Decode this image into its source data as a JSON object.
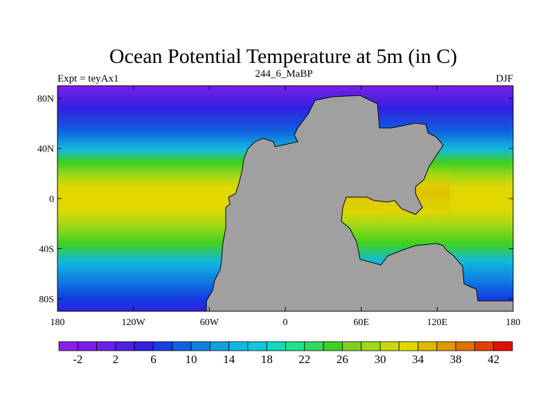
{
  "chart_data": {
    "type": "heatmap",
    "title": "Ocean Potential Temperature at 5m (in C)",
    "left_label": "Expt = teyAx1",
    "center_label": "244_6_MaBP",
    "right_label": "DJF",
    "x_ticks": [
      "180",
      "120W",
      "60W",
      "0",
      "60E",
      "120E",
      "180"
    ],
    "x_tick_values": [
      -180,
      -120,
      -60,
      0,
      60,
      120,
      180
    ],
    "y_ticks": [
      "80N",
      "40N",
      "0",
      "40S",
      "80S"
    ],
    "y_tick_values": [
      80,
      40,
      0,
      -40,
      -80
    ],
    "xlim": [
      -180,
      180
    ],
    "ylim": [
      -90,
      90
    ],
    "units": "C",
    "colorbar": {
      "levels": [
        -4,
        -2,
        0,
        2,
        4,
        6,
        8,
        10,
        12,
        14,
        16,
        18,
        20,
        22,
        24,
        26,
        28,
        30,
        32,
        34,
        36,
        38,
        40,
        42,
        44
      ],
      "labels": [
        "-2",
        "2",
        "6",
        "10",
        "14",
        "18",
        "22",
        "26",
        "30",
        "34",
        "38",
        "42"
      ],
      "colors": [
        "#8a20e8",
        "#7a20e8",
        "#6a20e8",
        "#5020e0",
        "#3020e0",
        "#1840e0",
        "#1060e0",
        "#1080e0",
        "#10a0e0",
        "#10b8e0",
        "#10c8d8",
        "#10d8c0",
        "#20e090",
        "#30d860",
        "#40d020",
        "#80d020",
        "#a0d818",
        "#c8d810",
        "#e0d800",
        "#e0b800",
        "#e09800",
        "#e07000",
        "#e04000",
        "#e01000"
      ]
    },
    "land_color": "#a0a0a0"
  }
}
